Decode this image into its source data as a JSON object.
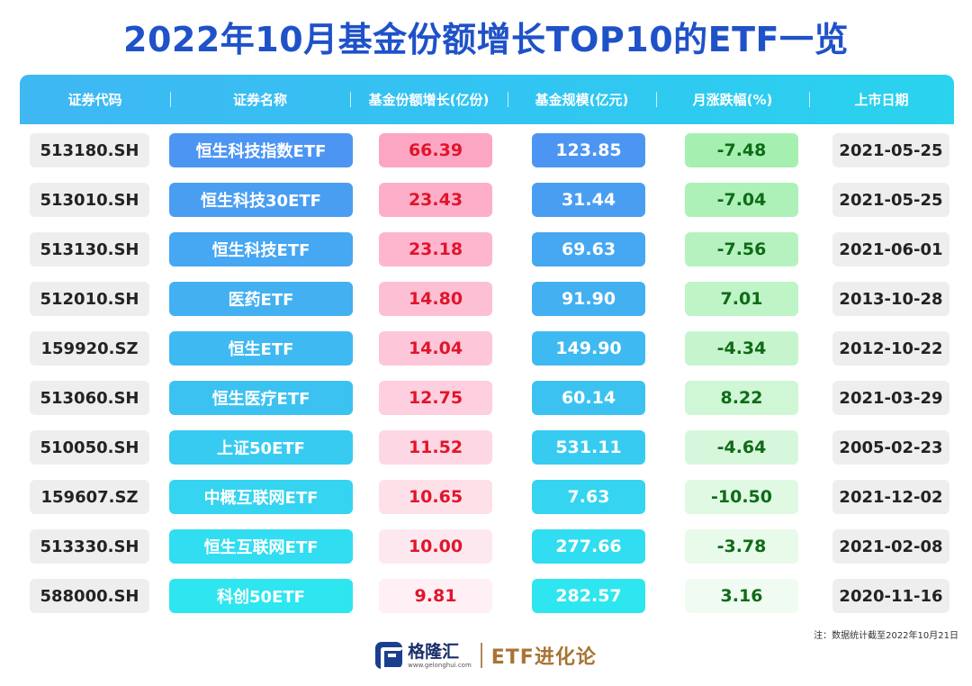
{
  "title": "2022年10月基金份额增长TOP10的ETF一览",
  "columns": [
    "证券代码",
    "证券名称",
    "基金份额增长(亿份)",
    "基金规模(亿元)",
    "月涨跌幅(%)",
    "上市日期"
  ],
  "rows": [
    {
      "code": "513180.SH",
      "name": "恒生科技指数ETF",
      "growth": "66.39",
      "scale": "123.85",
      "change": "-7.48",
      "date": "2021-05-25"
    },
    {
      "code": "513010.SH",
      "name": "恒生科技30ETF",
      "growth": "23.43",
      "scale": "31.44",
      "change": "-7.04",
      "date": "2021-05-25"
    },
    {
      "code": "513130.SH",
      "name": "恒生科技ETF",
      "growth": "23.18",
      "scale": "69.63",
      "change": "-7.56",
      "date": "2021-06-01"
    },
    {
      "code": "512010.SH",
      "name": "医药ETF",
      "growth": "14.80",
      "scale": "91.90",
      "change": "7.01",
      "date": "2013-10-28"
    },
    {
      "code": "159920.SZ",
      "name": "恒生ETF",
      "growth": "14.04",
      "scale": "149.90",
      "change": "-4.34",
      "date": "2012-10-22"
    },
    {
      "code": "513060.SH",
      "name": "恒生医疗ETF",
      "growth": "12.75",
      "scale": "60.14",
      "change": "8.22",
      "date": "2021-03-29"
    },
    {
      "code": "510050.SH",
      "name": "上证50ETF",
      "growth": "11.52",
      "scale": "531.11",
      "change": "-4.64",
      "date": "2005-02-23"
    },
    {
      "code": "159607.SZ",
      "name": "中概互联网ETF",
      "growth": "10.65",
      "scale": "7.63",
      "change": "-10.50",
      "date": "2021-12-02"
    },
    {
      "code": "513330.SH",
      "name": "恒生互联网ETF",
      "growth": "10.00",
      "scale": "277.66",
      "change": "-3.78",
      "date": "2021-02-08"
    },
    {
      "code": "588000.SH",
      "name": "科创50ETF",
      "growth": "9.81",
      "scale": "282.57",
      "change": "3.16",
      "date": "2020-11-16"
    }
  ],
  "colors": {
    "title": "#1f52c8",
    "name_gradient": [
      "#4d95f2",
      "#2ee6f0"
    ],
    "growth_gradient": [
      "#fda6c3",
      "#fef0f4"
    ],
    "scale_gradient": [
      "#4d95f2",
      "#2ee6f0"
    ],
    "change_gradient": [
      "#a5f0b1",
      "#f0fbf1"
    ]
  },
  "note": "注：数据统计截至2022年10月21日",
  "footer": {
    "logo_icon": "gelonghui-logo-icon",
    "logo_text": "格隆汇",
    "logo_url": "www.gelonghui.com",
    "brand": "ETF进化论"
  }
}
